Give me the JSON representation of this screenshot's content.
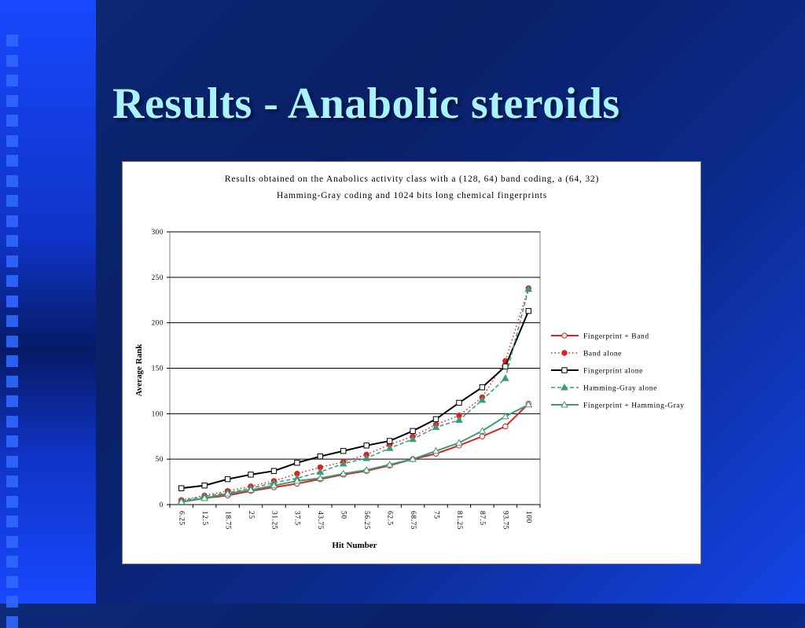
{
  "slide": {
    "title": "Results - Anabolic steroids"
  },
  "chart_data": {
    "type": "line",
    "title_lines": [
      "Results obtained on the Anabolics activity class with a (128, 64) band coding, a (64, 32)",
      "Hamming-Gray coding and 1024 bits long chemical fingerprints"
    ],
    "xlabel": "Hit Number",
    "ylabel": "Average Rank",
    "ylim": [
      0,
      300
    ],
    "yticks": [
      0,
      50,
      100,
      150,
      200,
      250,
      300
    ],
    "categories": [
      "6.25",
      "12.5",
      "18.75",
      "25",
      "31.25",
      "37.5",
      "43.75",
      "50",
      "56.25",
      "62.5",
      "68.75",
      "75",
      "81.25",
      "87.5",
      "93.75",
      "100"
    ],
    "grid": true,
    "legend_position": "right",
    "series": [
      {
        "name": "Fingerprint + Band",
        "color": "#e0201f",
        "style": "solid",
        "marker": "open-circle",
        "values": [
          3,
          7,
          10,
          15,
          19,
          23,
          28,
          33,
          37,
          43,
          50,
          56,
          65,
          75,
          86,
          111
        ]
      },
      {
        "name": "Band alone",
        "color": "#e0201f",
        "style": "dotted",
        "marker": "filled-circle",
        "values": [
          5,
          10,
          15,
          20,
          26,
          34,
          41,
          47,
          55,
          66,
          75,
          88,
          98,
          118,
          158,
          238
        ]
      },
      {
        "name": "Fingerprint alone",
        "color": "#000000",
        "style": "solid",
        "marker": "open-square",
        "values": [
          18,
          21,
          28,
          33,
          37,
          46,
          53,
          59,
          65,
          70,
          81,
          94,
          112,
          129,
          152,
          213
        ]
      },
      {
        "name": "Hamming-Gray alone",
        "color": "#3d9a78",
        "style": "dashed",
        "marker": "filled-triangle",
        "values": [
          4,
          9,
          13,
          18,
          24,
          29,
          36,
          45,
          51,
          62,
          72,
          85,
          93,
          115,
          139,
          237
        ]
      },
      {
        "name": "Fingerprint + Hamming-Gray",
        "color": "#3d9a78",
        "style": "solid",
        "marker": "open-triangle",
        "values": [
          3,
          7,
          12,
          16,
          21,
          26,
          29,
          34,
          38,
          44,
          50,
          59,
          68,
          81,
          97,
          110
        ]
      }
    ]
  }
}
